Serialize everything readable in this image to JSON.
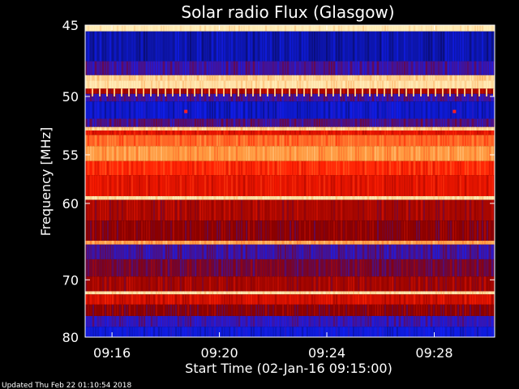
{
  "chart_data": {
    "type": "heatmap",
    "title": "Solar radio Flux (Glasgow)",
    "ylabel": "Frequency [MHz]",
    "xlabel": "Start Time (02-Jan-16 09:15:00)",
    "ylim": [
      45,
      80
    ],
    "y_scale": "reciprocal",
    "y_direction": "increasing-downward",
    "xlim": [
      "09:15:00",
      "09:30:15"
    ],
    "y_ticks": [
      {
        "value": 45,
        "label": "45"
      },
      {
        "value": 50,
        "label": "50"
      },
      {
        "value": 55,
        "label": "55"
      },
      {
        "value": 60,
        "label": "60"
      },
      {
        "value": 70,
        "label": "70"
      },
      {
        "value": 80,
        "label": "80"
      }
    ],
    "x_ticks": [
      {
        "value": "09:16:00",
        "label": "09:16"
      },
      {
        "value": "09:20:00",
        "label": "09:20"
      },
      {
        "value": "09:24:00",
        "label": "09:24"
      },
      {
        "value": "09:28:00",
        "label": "09:28"
      }
    ],
    "colormap": [
      "#0a0a55",
      "#1020ff",
      "#8a0000",
      "#ff1a00",
      "#ff9a40",
      "#fff2c0"
    ],
    "bands": [
      {
        "freq": [
          45.0,
          45.4
        ],
        "level": 0.98
      },
      {
        "freq": [
          45.4,
          47.4
        ],
        "level": 0.1
      },
      {
        "freq": [
          47.4,
          48.4
        ],
        "level": 0.28
      },
      {
        "freq": [
          48.4,
          48.8
        ],
        "level": 0.92
      },
      {
        "freq": [
          48.8,
          49.4
        ],
        "level": 0.96
      },
      {
        "freq": [
          49.4,
          49.8
        ],
        "level": 0.45
      },
      {
        "freq": [
          49.8,
          50.4
        ],
        "level": 0.28
      },
      {
        "freq": [
          50.4,
          51.8
        ],
        "level": 0.14
      },
      {
        "freq": [
          51.8,
          52.5
        ],
        "level": 0.3
      },
      {
        "freq": [
          52.5,
          52.8
        ],
        "level": 0.92
      },
      {
        "freq": [
          52.8,
          53.2
        ],
        "level": 0.55
      },
      {
        "freq": [
          53.2,
          54.2
        ],
        "level": 0.72
      },
      {
        "freq": [
          54.2,
          55.6
        ],
        "level": 0.8
      },
      {
        "freq": [
          55.6,
          57.0
        ],
        "level": 0.62
      },
      {
        "freq": [
          57.0,
          59.2
        ],
        "level": 0.55
      },
      {
        "freq": [
          59.2,
          59.6
        ],
        "level": 0.95
      },
      {
        "freq": [
          59.6,
          62.0
        ],
        "level": 0.45
      },
      {
        "freq": [
          62.0,
          64.5
        ],
        "level": 0.4
      },
      {
        "freq": [
          64.5,
          65.0
        ],
        "level": 0.82
      },
      {
        "freq": [
          65.0,
          67.0
        ],
        "level": 0.28
      },
      {
        "freq": [
          67.0,
          69.5
        ],
        "level": 0.36
      },
      {
        "freq": [
          69.5,
          71.8
        ],
        "level": 0.44
      },
      {
        "freq": [
          71.8,
          72.3
        ],
        "level": 0.95
      },
      {
        "freq": [
          72.3,
          74.0
        ],
        "level": 0.52
      },
      {
        "freq": [
          74.0,
          76.0
        ],
        "level": 0.4
      },
      {
        "freq": [
          76.0,
          78.0
        ],
        "level": 0.26
      },
      {
        "freq": [
          78.0,
          80.0
        ],
        "level": 0.16
      }
    ],
    "markers": [
      {
        "time": "09:18:45",
        "freq": 51.2
      },
      {
        "time": "09:28:45",
        "freq": 51.2
      }
    ]
  },
  "footer": {
    "updated_text": "Updated Thu Feb 22 01:10:54 2018"
  }
}
